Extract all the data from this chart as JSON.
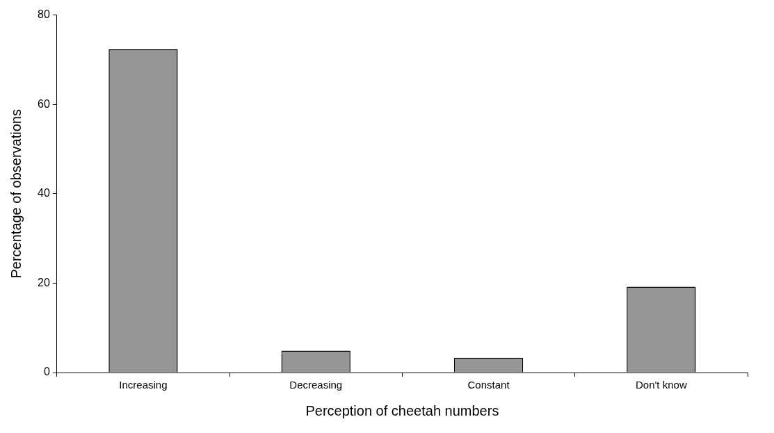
{
  "chart_data": {
    "type": "bar",
    "xlabel": "Perception of cheetah numbers",
    "ylabel": "Percentage of observations",
    "categories": [
      "Increasing",
      "Decreasing",
      "Constant",
      "Don't know"
    ],
    "values": [
      72.3,
      4.9,
      3.3,
      19.2
    ],
    "color": "#969696",
    "ylim": [
      0,
      80
    ],
    "yticks": [
      0,
      20,
      40,
      60,
      80
    ],
    "grid": false,
    "legend": false
  }
}
